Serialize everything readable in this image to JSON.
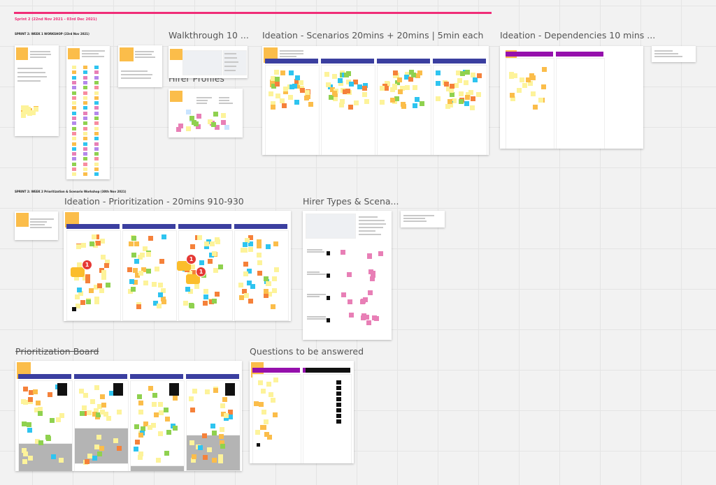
{
  "board": {
    "sprint_title": "Sprint 2 (22nd Nov 2021 - 03rd Dec 2021)",
    "week1_label": "SPRINT 2: WEEK 1 WORKSHOP (23rd Nov 2021)",
    "week2_label": "SPRINT 2: WEEK 2 Prioritization & Scenario Workshop (30th Nov 2021)",
    "accent_color": "#f02d78"
  },
  "frames": [
    {
      "id": "walkthrough",
      "title": "Walkthrough 10 ..."
    },
    {
      "id": "hirer-profiles",
      "title": "Hirer Profiles"
    },
    {
      "id": "ideation-scenarios",
      "title": "Ideation - Scenarios 20mins + 20mins | 5min each"
    },
    {
      "id": "ideation-dependencies",
      "title": "Ideation - Dependencies 10 mins ..."
    },
    {
      "id": "ideation-prioritization",
      "title": "Ideation - Prioritization - 20mins 910-930"
    },
    {
      "id": "hirer-types",
      "title": "Hirer Types & Scena..."
    },
    {
      "id": "prioritization-board",
      "title": "Prioritization Board"
    },
    {
      "id": "questions",
      "title": "Questions to be answered"
    }
  ],
  "comments": [
    {
      "count": "1"
    },
    {
      "count": "1"
    },
    {
      "count": "1"
    }
  ],
  "colors": {
    "sticky_yellow": "#fdf39a",
    "sticky_orange": "#fbbd4a",
    "sticky_green": "#8fd14f",
    "sticky_blue": "#2ec4f0",
    "sticky_red": "#f5813a",
    "sticky_pink": "#e87fb6",
    "header_blue": "#3b3fa0",
    "header_purple": "#9510ac",
    "header_black": "#111111"
  }
}
